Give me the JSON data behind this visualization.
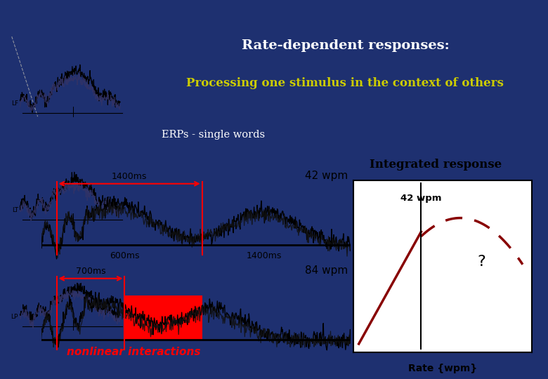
{
  "title_line1": "Rate-dependent responses:",
  "title_line2": "Processing one stimulus in the context of others",
  "subtitle": "ERPs - single words",
  "bg_dark": "#1e3070",
  "bg_light": "#f0f0f0",
  "title_color": "#ffffff",
  "yellow_color": "#cccc00",
  "label_42wpm": "42 wpm",
  "label_84wpm": "84 wpm",
  "label_1400ms_top": "1400ms",
  "label_600ms": "600ms",
  "label_1400ms_bot": "1400ms",
  "label_700ms": "700ms",
  "nonlinear_text": "nonlinear interactions",
  "integrated_title": "Integrated response",
  "integrated_xlabel": "Rate {wpm}",
  "integrated_42wpm": "42 wpm",
  "integrated_q": "?",
  "erp_labels": [
    "LF",
    "LT",
    "LP"
  ],
  "red_color": "#cc0000",
  "thumbnail_bg": "#b8c8e8",
  "white": "#ffffff"
}
